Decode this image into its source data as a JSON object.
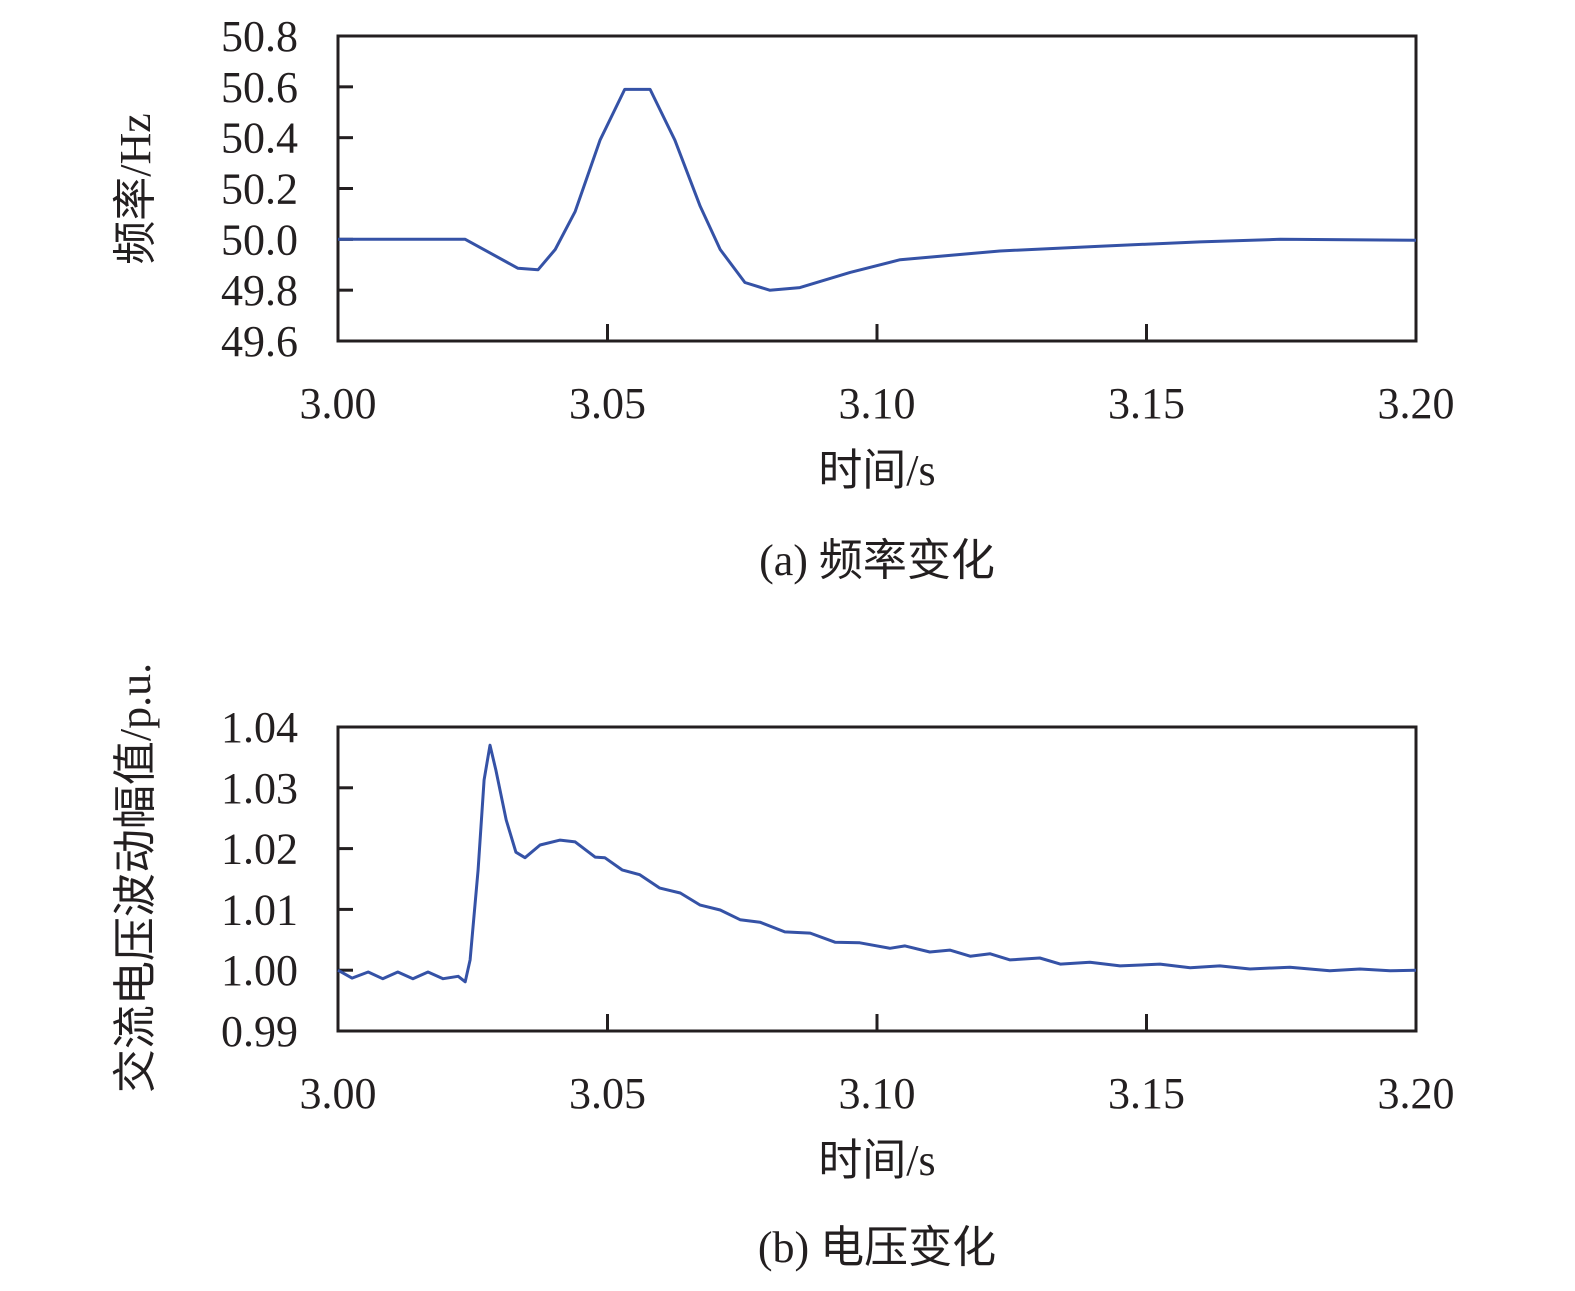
{
  "chart_data": [
    {
      "type": "line",
      "caption": "(a) 频率变化",
      "xlabel": "时间/s",
      "ylabel": "频率/Hz",
      "xlim": [
        3.0,
        3.2
      ],
      "ylim": [
        49.6,
        50.8
      ],
      "xticks": [
        "3.00",
        "3.05",
        "3.10",
        "3.15",
        "3.20"
      ],
      "yticks": [
        "49.6",
        "49.8",
        "50.0",
        "50.2",
        "50.4",
        "50.6",
        "50.8"
      ],
      "grid": false,
      "line_color": "#3552a6",
      "series": [
        {
          "name": "frequency",
          "x": [
            3.0,
            3.0236,
            3.0334,
            3.0371,
            3.0403,
            3.044,
            3.0486,
            3.0532,
            3.0579,
            3.0625,
            3.0672,
            3.0709,
            3.0755,
            3.0801,
            3.0857,
            3.095,
            3.1043,
            3.1228,
            3.1414,
            3.1599,
            3.1748,
            3.2
          ],
          "y": [
            50.0,
            50.0,
            49.886,
            49.88,
            49.96,
            50.11,
            50.39,
            50.59,
            50.59,
            50.39,
            50.13,
            49.96,
            49.83,
            49.8,
            49.81,
            49.87,
            49.92,
            49.954,
            49.973,
            49.99,
            50.0,
            49.996
          ]
        }
      ]
    },
    {
      "type": "line",
      "caption": "(b) 电压变化",
      "xlabel": "时间/s",
      "ylabel": "交流电压波动幅值/p.u.",
      "xlim": [
        3.0,
        3.2
      ],
      "ylim": [
        0.99,
        1.04
      ],
      "xticks": [
        "3.00",
        "3.05",
        "3.10",
        "3.15",
        "3.20"
      ],
      "yticks": [
        "0.99",
        "1.00",
        "1.01",
        "1.02",
        "1.03",
        "1.04"
      ],
      "grid": false,
      "line_color": "#3552a6",
      "series": [
        {
          "name": "ac-voltage",
          "x": [
            3.0,
            3.0026,
            3.0056,
            3.0083,
            3.0111,
            3.0139,
            3.0167,
            3.0195,
            3.0223,
            3.0236,
            3.0245,
            3.026,
            3.0271,
            3.0282,
            3.0293,
            3.0312,
            3.033,
            3.0347,
            3.0375,
            3.0412,
            3.044,
            3.0477,
            3.0495,
            3.0527,
            3.056,
            3.0597,
            3.0635,
            3.0672,
            3.0709,
            3.0746,
            3.0783,
            3.0829,
            3.0876,
            3.0922,
            3.0968,
            3.1024,
            3.1052,
            3.1098,
            3.1135,
            3.1173,
            3.121,
            3.1247,
            3.1302,
            3.134,
            3.1395,
            3.1451,
            3.1525,
            3.1581,
            3.1636,
            3.1692,
            3.1766,
            3.184,
            3.1896,
            3.1952,
            3.2
          ],
          "y": [
            1.0,
            0.9987,
            0.9997,
            0.9986,
            0.9997,
            0.9986,
            0.9997,
            0.9986,
            0.999,
            0.9981,
            1.0017,
            1.0165,
            1.0313,
            1.037,
            1.0329,
            1.0247,
            1.0194,
            1.0185,
            1.0206,
            1.0214,
            1.0211,
            1.0186,
            1.0185,
            1.0165,
            1.0157,
            1.0135,
            1.0127,
            1.0107,
            1.0099,
            1.0083,
            1.0079,
            1.0063,
            1.0061,
            1.0046,
            1.0045,
            1.0036,
            1.004,
            1.003,
            1.0033,
            1.0023,
            1.0027,
            1.0017,
            1.002,
            1.001,
            1.0013,
            1.0007,
            1.001,
            1.0004,
            1.0007,
            1.0002,
            1.0005,
            0.9999,
            1.0002,
            0.9999,
            1.0
          ]
        }
      ]
    }
  ]
}
